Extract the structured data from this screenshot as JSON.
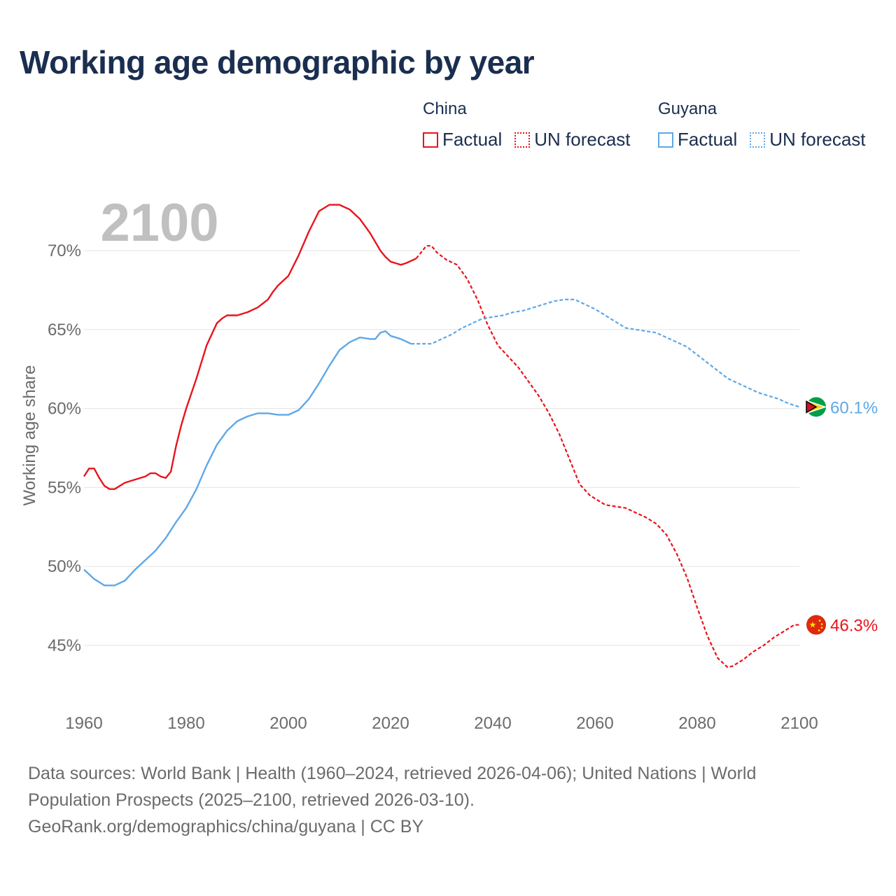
{
  "title": "Working age demographic by year",
  "colors": {
    "china": "#e8141c",
    "guyana": "#5fa8e6",
    "title": "#1a2e4f",
    "axis_text": "#6b6b6b",
    "watermark": "#c0c0c0",
    "grid": "#e3e3e3"
  },
  "legend": {
    "china": {
      "name": "China",
      "factual": "Factual",
      "forecast": "UN forecast"
    },
    "guyana": {
      "name": "Guyana",
      "factual": "Factual",
      "forecast": "UN forecast"
    }
  },
  "year_watermark": "2100",
  "chart_data": {
    "type": "line",
    "title": "Working age demographic by year",
    "xlabel": "",
    "ylabel": "Working age share",
    "xlim": [
      1960,
      2100
    ],
    "ylim": [
      42,
      73
    ],
    "x_ticks": [
      1960,
      1980,
      2000,
      2020,
      2040,
      2060,
      2080,
      2100
    ],
    "x_tick_labels": [
      "1960",
      "1980",
      "2000",
      "2020",
      "2040",
      "2060",
      "2080",
      "2100"
    ],
    "y_ticks": [
      45,
      50,
      55,
      60,
      65,
      70
    ],
    "y_tick_labels": [
      "45%",
      "50%",
      "55%",
      "60%",
      "65%",
      "70%"
    ],
    "grid": true,
    "forecast_start": 2025,
    "series": [
      {
        "name": "China",
        "color": "#e8141c",
        "end_label": "46.3%",
        "points": [
          [
            1960,
            55.7
          ],
          [
            1961,
            56.2
          ],
          [
            1962,
            56.2
          ],
          [
            1963,
            55.6
          ],
          [
            1964,
            55.1
          ],
          [
            1965,
            54.9
          ],
          [
            1966,
            54.9
          ],
          [
            1968,
            55.3
          ],
          [
            1970,
            55.5
          ],
          [
            1972,
            55.7
          ],
          [
            1973,
            55.9
          ],
          [
            1974,
            55.9
          ],
          [
            1975,
            55.7
          ],
          [
            1976,
            55.6
          ],
          [
            1977,
            56.0
          ],
          [
            1978,
            57.6
          ],
          [
            1979,
            58.9
          ],
          [
            1980,
            60.0
          ],
          [
            1982,
            61.9
          ],
          [
            1984,
            64.0
          ],
          [
            1986,
            65.4
          ],
          [
            1987,
            65.7
          ],
          [
            1988,
            65.9
          ],
          [
            1990,
            65.9
          ],
          [
            1992,
            66.1
          ],
          [
            1994,
            66.4
          ],
          [
            1996,
            66.9
          ],
          [
            1997,
            67.4
          ],
          [
            1998,
            67.8
          ],
          [
            2000,
            68.4
          ],
          [
            2002,
            69.7
          ],
          [
            2004,
            71.2
          ],
          [
            2006,
            72.5
          ],
          [
            2008,
            72.9
          ],
          [
            2009,
            72.9
          ],
          [
            2010,
            72.9
          ],
          [
            2012,
            72.6
          ],
          [
            2014,
            72.0
          ],
          [
            2016,
            71.1
          ],
          [
            2018,
            70.0
          ],
          [
            2019,
            69.6
          ],
          [
            2020,
            69.3
          ],
          [
            2021,
            69.2
          ],
          [
            2022,
            69.1
          ],
          [
            2023,
            69.2
          ],
          [
            2025,
            69.5
          ],
          [
            2026,
            69.9
          ],
          [
            2027,
            70.3
          ],
          [
            2028,
            70.3
          ],
          [
            2029,
            69.9
          ],
          [
            2031,
            69.4
          ],
          [
            2033,
            69.1
          ],
          [
            2035,
            68.2
          ],
          [
            2037,
            66.9
          ],
          [
            2039,
            65.3
          ],
          [
            2041,
            64.0
          ],
          [
            2043,
            63.3
          ],
          [
            2045,
            62.6
          ],
          [
            2047,
            61.7
          ],
          [
            2049,
            60.8
          ],
          [
            2051,
            59.7
          ],
          [
            2053,
            58.4
          ],
          [
            2055,
            56.8
          ],
          [
            2057,
            55.2
          ],
          [
            2059,
            54.5
          ],
          [
            2061,
            54.1
          ],
          [
            2062,
            53.9
          ],
          [
            2064,
            53.8
          ],
          [
            2066,
            53.7
          ],
          [
            2068,
            53.4
          ],
          [
            2070,
            53.1
          ],
          [
            2072,
            52.7
          ],
          [
            2074,
            52.0
          ],
          [
            2076,
            50.8
          ],
          [
            2078,
            49.3
          ],
          [
            2080,
            47.4
          ],
          [
            2082,
            45.6
          ],
          [
            2084,
            44.2
          ],
          [
            2086,
            43.6
          ],
          [
            2087,
            43.7
          ],
          [
            2089,
            44.1
          ],
          [
            2091,
            44.6
          ],
          [
            2093,
            45.0
          ],
          [
            2095,
            45.5
          ],
          [
            2097,
            45.9
          ],
          [
            2099,
            46.3
          ],
          [
            2100,
            46.3
          ]
        ]
      },
      {
        "name": "Guyana",
        "color": "#5fa8e6",
        "end_label": "60.1%",
        "points": [
          [
            1960,
            49.8
          ],
          [
            1962,
            49.2
          ],
          [
            1964,
            48.8
          ],
          [
            1966,
            48.8
          ],
          [
            1968,
            49.1
          ],
          [
            1970,
            49.8
          ],
          [
            1972,
            50.4
          ],
          [
            1974,
            51.0
          ],
          [
            1976,
            51.8
          ],
          [
            1978,
            52.8
          ],
          [
            1980,
            53.7
          ],
          [
            1982,
            54.9
          ],
          [
            1984,
            56.4
          ],
          [
            1986,
            57.7
          ],
          [
            1988,
            58.6
          ],
          [
            1990,
            59.2
          ],
          [
            1992,
            59.5
          ],
          [
            1994,
            59.7
          ],
          [
            1996,
            59.7
          ],
          [
            1998,
            59.6
          ],
          [
            2000,
            59.6
          ],
          [
            2002,
            59.9
          ],
          [
            2004,
            60.6
          ],
          [
            2006,
            61.6
          ],
          [
            2008,
            62.7
          ],
          [
            2010,
            63.7
          ],
          [
            2012,
            64.2
          ],
          [
            2014,
            64.5
          ],
          [
            2016,
            64.4
          ],
          [
            2017,
            64.4
          ],
          [
            2018,
            64.8
          ],
          [
            2019,
            64.9
          ],
          [
            2020,
            64.6
          ],
          [
            2022,
            64.4
          ],
          [
            2024,
            64.1
          ],
          [
            2026,
            64.1
          ],
          [
            2028,
            64.1
          ],
          [
            2030,
            64.4
          ],
          [
            2032,
            64.7
          ],
          [
            2034,
            65.1
          ],
          [
            2036,
            65.4
          ],
          [
            2038,
            65.7
          ],
          [
            2040,
            65.8
          ],
          [
            2042,
            65.9
          ],
          [
            2044,
            66.1
          ],
          [
            2046,
            66.2
          ],
          [
            2048,
            66.4
          ],
          [
            2050,
            66.6
          ],
          [
            2052,
            66.8
          ],
          [
            2054,
            66.9
          ],
          [
            2056,
            66.9
          ],
          [
            2058,
            66.6
          ],
          [
            2060,
            66.3
          ],
          [
            2062,
            65.9
          ],
          [
            2064,
            65.5
          ],
          [
            2066,
            65.1
          ],
          [
            2068,
            65.0
          ],
          [
            2070,
            64.9
          ],
          [
            2072,
            64.8
          ],
          [
            2074,
            64.5
          ],
          [
            2076,
            64.2
          ],
          [
            2078,
            63.9
          ],
          [
            2080,
            63.4
          ],
          [
            2082,
            62.9
          ],
          [
            2084,
            62.4
          ],
          [
            2086,
            61.9
          ],
          [
            2088,
            61.6
          ],
          [
            2090,
            61.3
          ],
          [
            2092,
            61.0
          ],
          [
            2094,
            60.8
          ],
          [
            2096,
            60.6
          ],
          [
            2098,
            60.3
          ],
          [
            2100,
            60.1
          ]
        ]
      }
    ]
  },
  "footer": {
    "line1": "Data sources: World Bank | Health (1960–2024, retrieved 2026-04-06); United Nations | World",
    "line2": "Population Prospects (2025–2100, retrieved 2026-03-10).",
    "line3": "GeoRank.org/demographics/china/guyana | CC BY"
  }
}
